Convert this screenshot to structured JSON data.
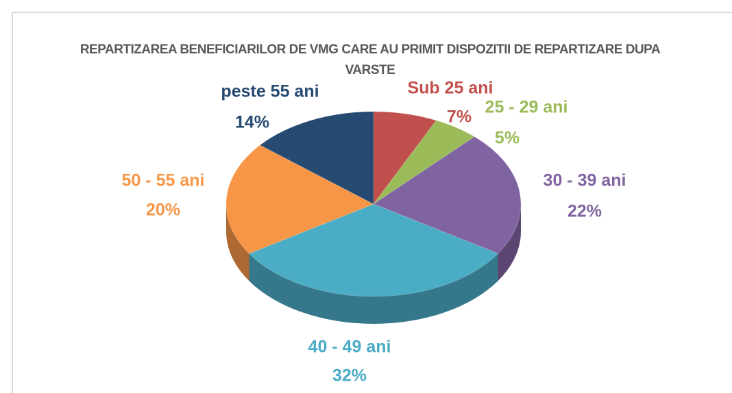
{
  "chart_data": {
    "type": "pie",
    "title": "REPARTIZAREA BENEFICIARILOR DE VMG CARE AU PRIMIT DISPOZITII DE REPARTIZARE DUPA VARSTE",
    "categories": [
      "Sub 25 ani",
      "25 - 29 ani",
      "30 - 39 ani",
      "40 - 49 ani",
      "50 - 55 ani",
      "peste 55 ani"
    ],
    "values": [
      7,
      5,
      22,
      32,
      20,
      14
    ],
    "value_labels": [
      "7%",
      "5%",
      "22%",
      "32%",
      "20%",
      "14%"
    ],
    "colors": [
      "#c0504d",
      "#9bbb59",
      "#8064a2",
      "#4bacc6",
      "#f79646",
      "#264a72"
    ]
  }
}
